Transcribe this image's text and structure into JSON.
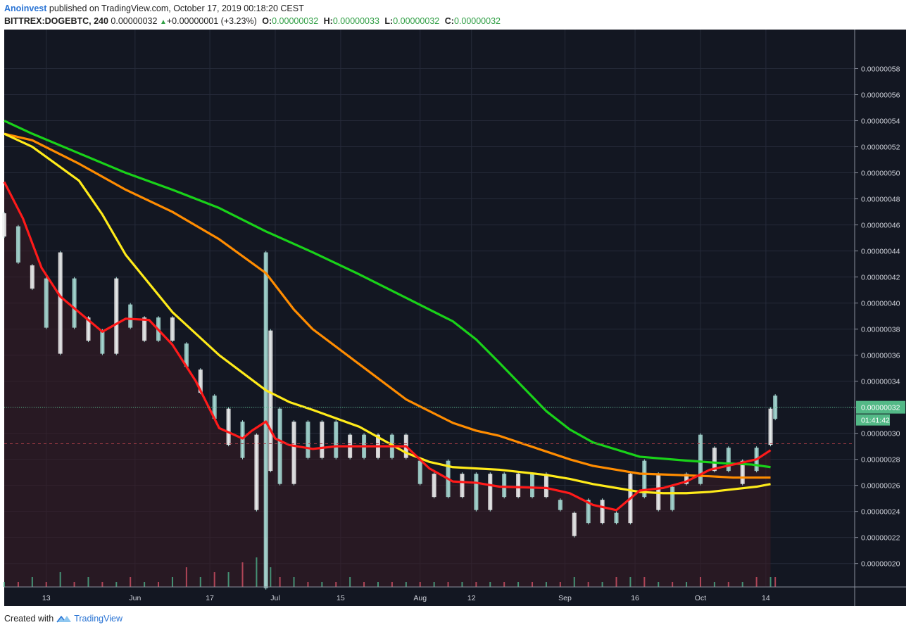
{
  "header": {
    "author": "Anoinvest",
    "published": "published on TradingView.com, October 17, 2019 00:18:20 CEST",
    "symbol": "BITTREX:DOGEBTC, 240",
    "last": "0.00000032",
    "change": "+0.00000001 (+3.23%)",
    "open_label": "O:",
    "open": "0.00000032",
    "high_label": "H:",
    "high": "0.00000033",
    "low_label": "L:",
    "low": "0.00000032",
    "close_label": "C:",
    "close": "0.00000032"
  },
  "price_tag": {
    "price": "0.00000032",
    "countdown": "01:41:42"
  },
  "footer": {
    "created_with": "Created with",
    "brand": "TradingView"
  },
  "colors": {
    "background": "#131722",
    "ma_green": "#19d219",
    "ma_orange": "#ff8c00",
    "ma_yellow": "#ffeb1a",
    "ma_red": "#ff1a1a",
    "candle_up": "#a8ddd6",
    "candle_down": "#f2f2f2",
    "price_tag": "#53b987"
  },
  "chart_data": {
    "type": "line",
    "title": "",
    "y_scale_ticks": [
      "0.00000020",
      "0.00000022",
      "0.00000024",
      "0.00000026",
      "0.00000028",
      "0.00000030",
      "0.00000032",
      "0.00000034",
      "0.00000036",
      "0.00000038",
      "0.00000040",
      "0.00000042",
      "0.00000044",
      "0.00000046",
      "0.00000048",
      "0.00000050",
      "0.00000052",
      "0.00000054",
      "0.00000056",
      "0.00000058"
    ],
    "x_ticks": [
      "13",
      "Jun",
      "17",
      "Jul",
      "15",
      "Aug",
      "12",
      "Sep",
      "16",
      "Oct",
      "14"
    ],
    "x_tick_days": [
      13,
      32,
      48,
      62,
      76,
      93,
      104,
      124,
      139,
      153,
      167
    ],
    "x_range_days": [
      4,
      186
    ],
    "last_data_day": 169,
    "ylim": [
      18.2,
      61.0
    ],
    "y_unit_note": "values in units of 1e-8 BTC",
    "grid": true,
    "series": [
      {
        "key": "green",
        "x": [
          4,
          10,
          20,
          30,
          40,
          50,
          60,
          70,
          80,
          90,
          100,
          105,
          110,
          120,
          125,
          130,
          140,
          150,
          158,
          164,
          168
        ],
        "y": [
          54.0,
          53.0,
          51.5,
          50.0,
          48.7,
          47.3,
          45.5,
          43.9,
          42.2,
          40.4,
          38.6,
          37.2,
          35.4,
          31.7,
          30.3,
          29.3,
          28.2,
          27.9,
          27.7,
          27.6,
          27.4
        ]
      },
      {
        "key": "orange",
        "x": [
          4,
          10,
          20,
          30,
          40,
          50,
          60,
          66,
          70,
          80,
          90,
          100,
          105,
          110,
          120,
          125,
          130,
          140,
          148,
          155,
          160,
          164,
          168
        ],
        "y": [
          53.0,
          52.5,
          50.7,
          48.7,
          47.0,
          44.9,
          42.3,
          39.5,
          38.0,
          35.3,
          32.6,
          30.8,
          30.2,
          29.8,
          28.6,
          28.0,
          27.5,
          26.9,
          26.8,
          26.7,
          26.6,
          26.6,
          26.6
        ]
      },
      {
        "key": "yellow",
        "x": [
          4,
          10,
          20,
          25,
          30,
          40,
          50,
          60,
          65,
          70,
          80,
          90,
          95,
          100,
          105,
          110,
          120,
          125,
          130,
          135,
          140,
          145,
          150,
          155,
          160,
          165,
          168
        ],
        "y": [
          53.0,
          52.0,
          49.4,
          46.8,
          43.7,
          39.3,
          36.0,
          33.3,
          32.4,
          31.8,
          30.5,
          28.5,
          27.8,
          27.4,
          27.3,
          27.2,
          26.8,
          26.5,
          26.1,
          25.8,
          25.5,
          25.4,
          25.4,
          25.5,
          25.7,
          25.9,
          26.1
        ]
      },
      {
        "key": "red",
        "x": [
          4,
          8,
          12,
          16,
          20,
          25,
          30,
          35,
          40,
          45,
          50,
          55,
          57,
          60,
          62,
          65,
          70,
          75,
          80,
          90,
          95,
          100,
          105,
          110,
          120,
          125,
          130,
          135,
          140,
          145,
          150,
          155,
          160,
          165,
          168
        ],
        "y": [
          49.3,
          46.5,
          42.7,
          40.5,
          39.3,
          37.8,
          38.8,
          38.7,
          36.8,
          34.0,
          30.4,
          29.6,
          30.2,
          30.9,
          29.6,
          29.1,
          28.8,
          29.0,
          29.0,
          29.0,
          27.3,
          26.3,
          26.2,
          25.9,
          25.8,
          25.4,
          24.5,
          24.1,
          25.6,
          25.8,
          26.3,
          27.2,
          27.6,
          28.0,
          28.7
        ]
      }
    ],
    "candles_hl": {
      "x": [
        4,
        7,
        10,
        13,
        16,
        19,
        22,
        25,
        28,
        31,
        34,
        37,
        40,
        43,
        46,
        49,
        52,
        55,
        58,
        60,
        61,
        63,
        66,
        69,
        72,
        75,
        78,
        81,
        84,
        87,
        90,
        93,
        96,
        99,
        102,
        105,
        108,
        111,
        114,
        117,
        120,
        123,
        126,
        129,
        132,
        135,
        138,
        141,
        144,
        147,
        150,
        153,
        156,
        159,
        162,
        165,
        168,
        169
      ],
      "high": [
        47,
        46,
        43,
        42,
        44,
        42,
        39,
        38,
        42,
        40,
        39,
        39,
        39,
        37,
        35,
        33,
        32,
        31,
        30,
        44,
        38,
        32,
        31,
        31,
        31,
        31,
        30,
        30,
        30,
        30,
        30,
        28,
        27,
        28,
        27,
        27,
        27,
        27,
        27,
        27,
        27,
        25,
        24,
        25,
        25,
        24,
        27,
        28,
        27,
        26,
        27,
        30,
        29,
        29,
        28,
        29,
        32,
        33
      ],
      "low": [
        45,
        43,
        41,
        38,
        36,
        38,
        37,
        36,
        36,
        38,
        37,
        37,
        37,
        35,
        33,
        31,
        29,
        28,
        24,
        18,
        27,
        26,
        26,
        28,
        28,
        28,
        28,
        28,
        28,
        28,
        28,
        26,
        25,
        25,
        25,
        24,
        24,
        25,
        25,
        25,
        25,
        24,
        22,
        23,
        23,
        23,
        23,
        25,
        24,
        24,
        26,
        26,
        27,
        27,
        26,
        27,
        29,
        31
      ]
    },
    "volume_relative": [
      0.1,
      0.1,
      0.2,
      0.1,
      0.3,
      0.1,
      0.2,
      0.1,
      0.1,
      0.2,
      0.1,
      0.1,
      0.2,
      0.4,
      0.2,
      0.3,
      0.3,
      0.5,
      0.6,
      1.0,
      0.4,
      0.2,
      0.2,
      0.1,
      0.1,
      0.1,
      0.2,
      0.1,
      0.1,
      0.1,
      0.1,
      0.1,
      0.1,
      0.1,
      0.1,
      0.1,
      0.1,
      0.1,
      0.1,
      0.1,
      0.1,
      0.1,
      0.2,
      0.1,
      0.1,
      0.2,
      0.2,
      0.2,
      0.1,
      0.1,
      0.1,
      0.2,
      0.1,
      0.1,
      0.1,
      0.2,
      0.2,
      0.2
    ]
  }
}
